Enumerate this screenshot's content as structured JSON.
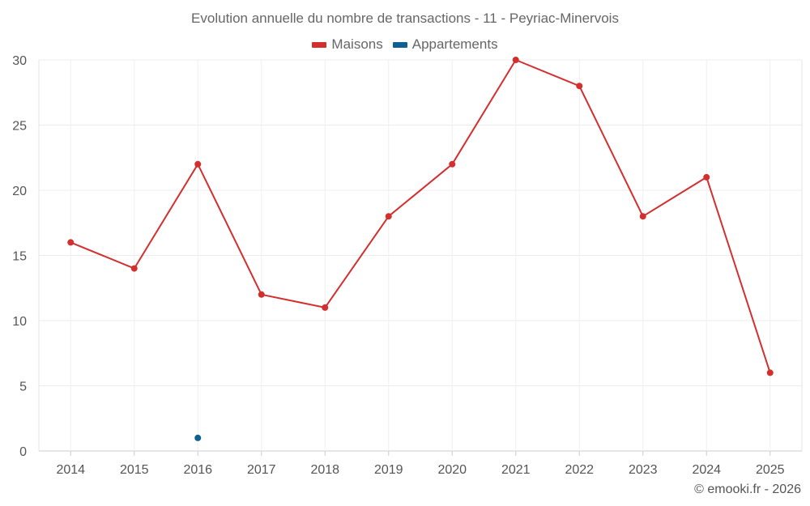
{
  "chart_data": {
    "type": "line",
    "title": "Evolution annuelle du nombre de transactions - 11 - Peyriac-Minervois",
    "categories": [
      "2014",
      "2015",
      "2016",
      "2017",
      "2018",
      "2019",
      "2020",
      "2021",
      "2022",
      "2023",
      "2024",
      "2025"
    ],
    "series": [
      {
        "name": "Maisons",
        "color": "#d32f2f",
        "values": [
          16,
          14,
          22,
          12,
          11,
          18,
          22,
          30,
          28,
          18,
          21,
          6
        ]
      },
      {
        "name": "Appartements",
        "color": "#0d5f94",
        "values": [
          null,
          null,
          1,
          null,
          null,
          null,
          null,
          null,
          null,
          null,
          null,
          null
        ]
      }
    ],
    "yticks": [
      0,
      5,
      10,
      15,
      20,
      25,
      30
    ],
    "ylim": [
      0,
      30
    ],
    "legend_position": "top-center",
    "grid": true,
    "xlabel": "",
    "ylabel": ""
  },
  "credit": "© emooki.fr - 2026"
}
